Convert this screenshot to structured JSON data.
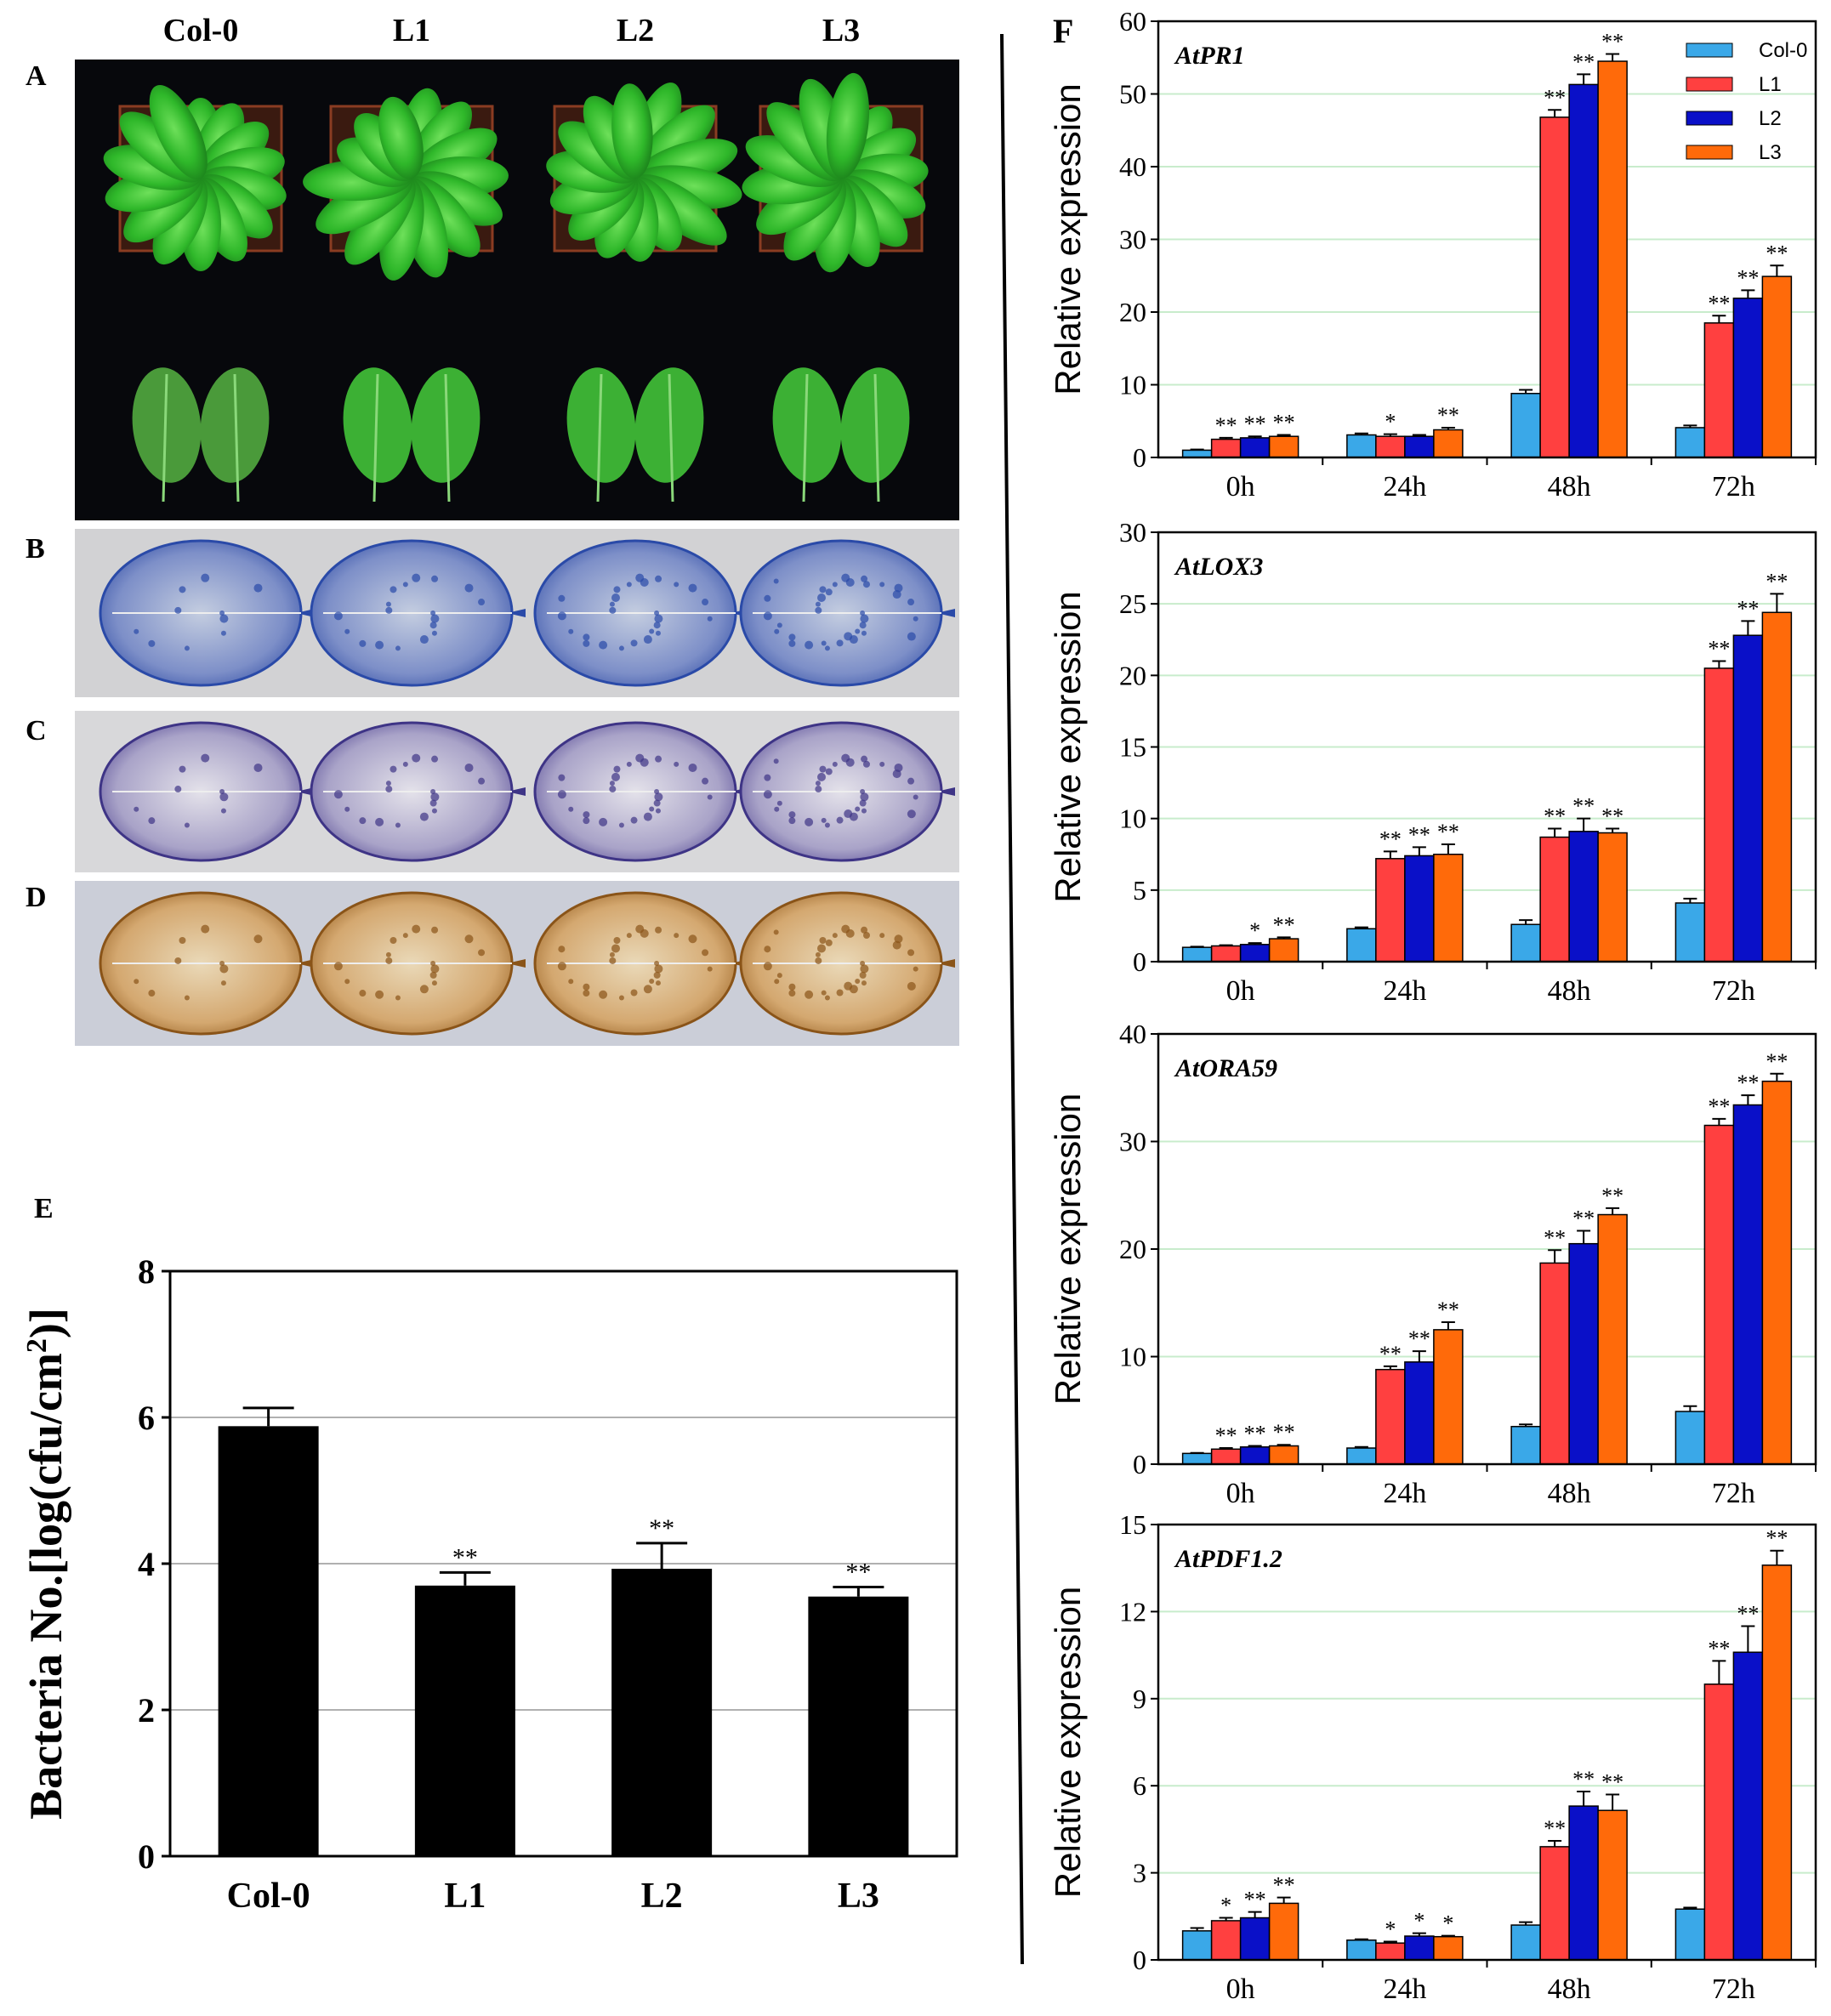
{
  "panel_labels": {
    "A": "A",
    "B": "B",
    "C": "C",
    "D": "D",
    "E": "E",
    "F": "F"
  },
  "photo_columns": [
    "Col-0",
    "L1",
    "L2",
    "L3"
  ],
  "colors": {
    "Col-0": "#3aa8e8",
    "L1": "#ff4040",
    "L2": "#0a10c8",
    "L3": "#ff6a0a",
    "E_bar": "#000000",
    "grid": "#c8eccc"
  },
  "chart_data": [
    {
      "panel": "E",
      "type": "bar",
      "categories": [
        "Col-0",
        "L1",
        "L2",
        "L3"
      ],
      "values": [
        5.88,
        3.7,
        3.93,
        3.55
      ],
      "errors": [
        0.25,
        0.18,
        0.35,
        0.13
      ],
      "significance": [
        "",
        "**",
        "**",
        "**"
      ],
      "ylabel": "Bacteria No.[log(cfu/cm²)]",
      "ylabel_parts": {
        "main": "Bacteria No.[log(cfu/cm",
        "sup": "2",
        "end": ")]"
      },
      "ylim": [
        0,
        8
      ],
      "yticks": [
        "0",
        "2",
        "4",
        "6",
        "8"
      ],
      "grid": true
    },
    {
      "panel": "F",
      "gene": "AtPR1",
      "type": "bar",
      "categories": [
        "0h",
        "24h",
        "48h",
        "72h"
      ],
      "ylabel": "Relative expression",
      "ylim": [
        0,
        60
      ],
      "yticks": [
        "0",
        "10",
        "20",
        "30",
        "40",
        "50",
        "60"
      ],
      "legend": "top-right",
      "series": [
        {
          "name": "Col-0",
          "values": [
            1,
            3.1,
            8.8,
            4.1
          ],
          "errors": [
            0.1,
            0.2,
            0.5,
            0.3
          ],
          "sig": [
            "",
            "",
            "",
            ""
          ]
        },
        {
          "name": "L1",
          "values": [
            2.5,
            2.9,
            46.8,
            18.5
          ],
          "errors": [
            0.2,
            0.3,
            1,
            1
          ],
          "sig": [
            "**",
            "*",
            "**",
            "**"
          ]
        },
        {
          "name": "L2",
          "values": [
            2.7,
            2.9,
            51.3,
            21.9
          ],
          "errors": [
            0.2,
            0.2,
            1.4,
            1.1
          ],
          "sig": [
            "**",
            "",
            "**",
            "**"
          ]
        },
        {
          "name": "L3",
          "values": [
            2.9,
            3.8,
            54.5,
            24.9
          ],
          "errors": [
            0.2,
            0.3,
            1,
            1.5
          ],
          "sig": [
            "**",
            "**",
            "**",
            "**"
          ]
        }
      ]
    },
    {
      "panel": "F",
      "gene": "AtLOX3",
      "type": "bar",
      "categories": [
        "0h",
        "24h",
        "48h",
        "72h"
      ],
      "ylabel": "Relative expression",
      "ylim": [
        0,
        30
      ],
      "yticks": [
        "0",
        "5",
        "10",
        "15",
        "20",
        "25",
        "30"
      ],
      "series": [
        {
          "name": "Col-0",
          "values": [
            1,
            2.3,
            2.6,
            4.1
          ],
          "errors": [
            0.05,
            0.1,
            0.3,
            0.3
          ],
          "sig": [
            "",
            "",
            "",
            ""
          ]
        },
        {
          "name": "L1",
          "values": [
            1.1,
            7.2,
            8.7,
            20.5
          ],
          "errors": [
            0.05,
            0.5,
            0.6,
            0.5
          ],
          "sig": [
            "",
            "**",
            "**",
            "**"
          ]
        },
        {
          "name": "L2",
          "values": [
            1.2,
            7.4,
            9.1,
            22.8
          ],
          "errors": [
            0.1,
            0.6,
            0.9,
            1
          ],
          "sig": [
            "*",
            "**",
            "**",
            "**"
          ]
        },
        {
          "name": "L3",
          "values": [
            1.6,
            7.5,
            9,
            24.4
          ],
          "errors": [
            0.1,
            0.7,
            0.3,
            1.3
          ],
          "sig": [
            "**",
            "**",
            "**",
            "**"
          ]
        }
      ]
    },
    {
      "panel": "F",
      "gene": "AtORA59",
      "type": "bar",
      "categories": [
        "0h",
        "24h",
        "48h",
        "72h"
      ],
      "ylabel": "Relative expression",
      "ylim": [
        0,
        40
      ],
      "yticks": [
        "0",
        "10",
        "20",
        "30",
        "40"
      ],
      "series": [
        {
          "name": "Col-0",
          "values": [
            1,
            1.5,
            3.5,
            4.9
          ],
          "errors": [
            0.05,
            0.1,
            0.2,
            0.5
          ],
          "sig": [
            "",
            "",
            "",
            ""
          ]
        },
        {
          "name": "L1",
          "values": [
            1.4,
            8.8,
            18.7,
            31.5
          ],
          "errors": [
            0.1,
            0.3,
            1.2,
            0.6
          ],
          "sig": [
            "**",
            "**",
            "**",
            "**"
          ]
        },
        {
          "name": "L2",
          "values": [
            1.6,
            9.5,
            20.5,
            33.4
          ],
          "errors": [
            0.1,
            1,
            1.2,
            0.9
          ],
          "sig": [
            "**",
            "**",
            "**",
            "**"
          ]
        },
        {
          "name": "L3",
          "values": [
            1.7,
            12.5,
            23.2,
            35.6
          ],
          "errors": [
            0.1,
            0.7,
            0.6,
            0.7
          ],
          "sig": [
            "**",
            "**",
            "**",
            "**"
          ]
        }
      ]
    },
    {
      "panel": "F",
      "gene": "AtPDF1.2",
      "type": "bar",
      "categories": [
        "0h",
        "24h",
        "48h",
        "72h"
      ],
      "ylabel": "Relative expression",
      "ylim": [
        0,
        15
      ],
      "yticks": [
        "0",
        "3",
        "6",
        "9",
        "12",
        "15"
      ],
      "series": [
        {
          "name": "Col-0",
          "values": [
            1,
            0.68,
            1.2,
            1.75
          ],
          "errors": [
            0.1,
            0.03,
            0.1,
            0.05
          ],
          "sig": [
            "",
            "",
            "",
            ""
          ]
        },
        {
          "name": "L1",
          "values": [
            1.35,
            0.58,
            3.9,
            9.5
          ],
          "errors": [
            0.1,
            0.05,
            0.2,
            0.8
          ],
          "sig": [
            "*",
            "*",
            "**",
            "**"
          ]
        },
        {
          "name": "L2",
          "values": [
            1.45,
            0.82,
            5.3,
            10.6
          ],
          "errors": [
            0.2,
            0.1,
            0.5,
            0.9
          ],
          "sig": [
            "**",
            "*",
            "**",
            "**"
          ]
        },
        {
          "name": "L3",
          "values": [
            1.95,
            0.8,
            5.15,
            13.6
          ],
          "errors": [
            0.2,
            0.03,
            0.55,
            0.5
          ],
          "sig": [
            "**",
            "*",
            "**",
            "**"
          ]
        }
      ]
    }
  ]
}
